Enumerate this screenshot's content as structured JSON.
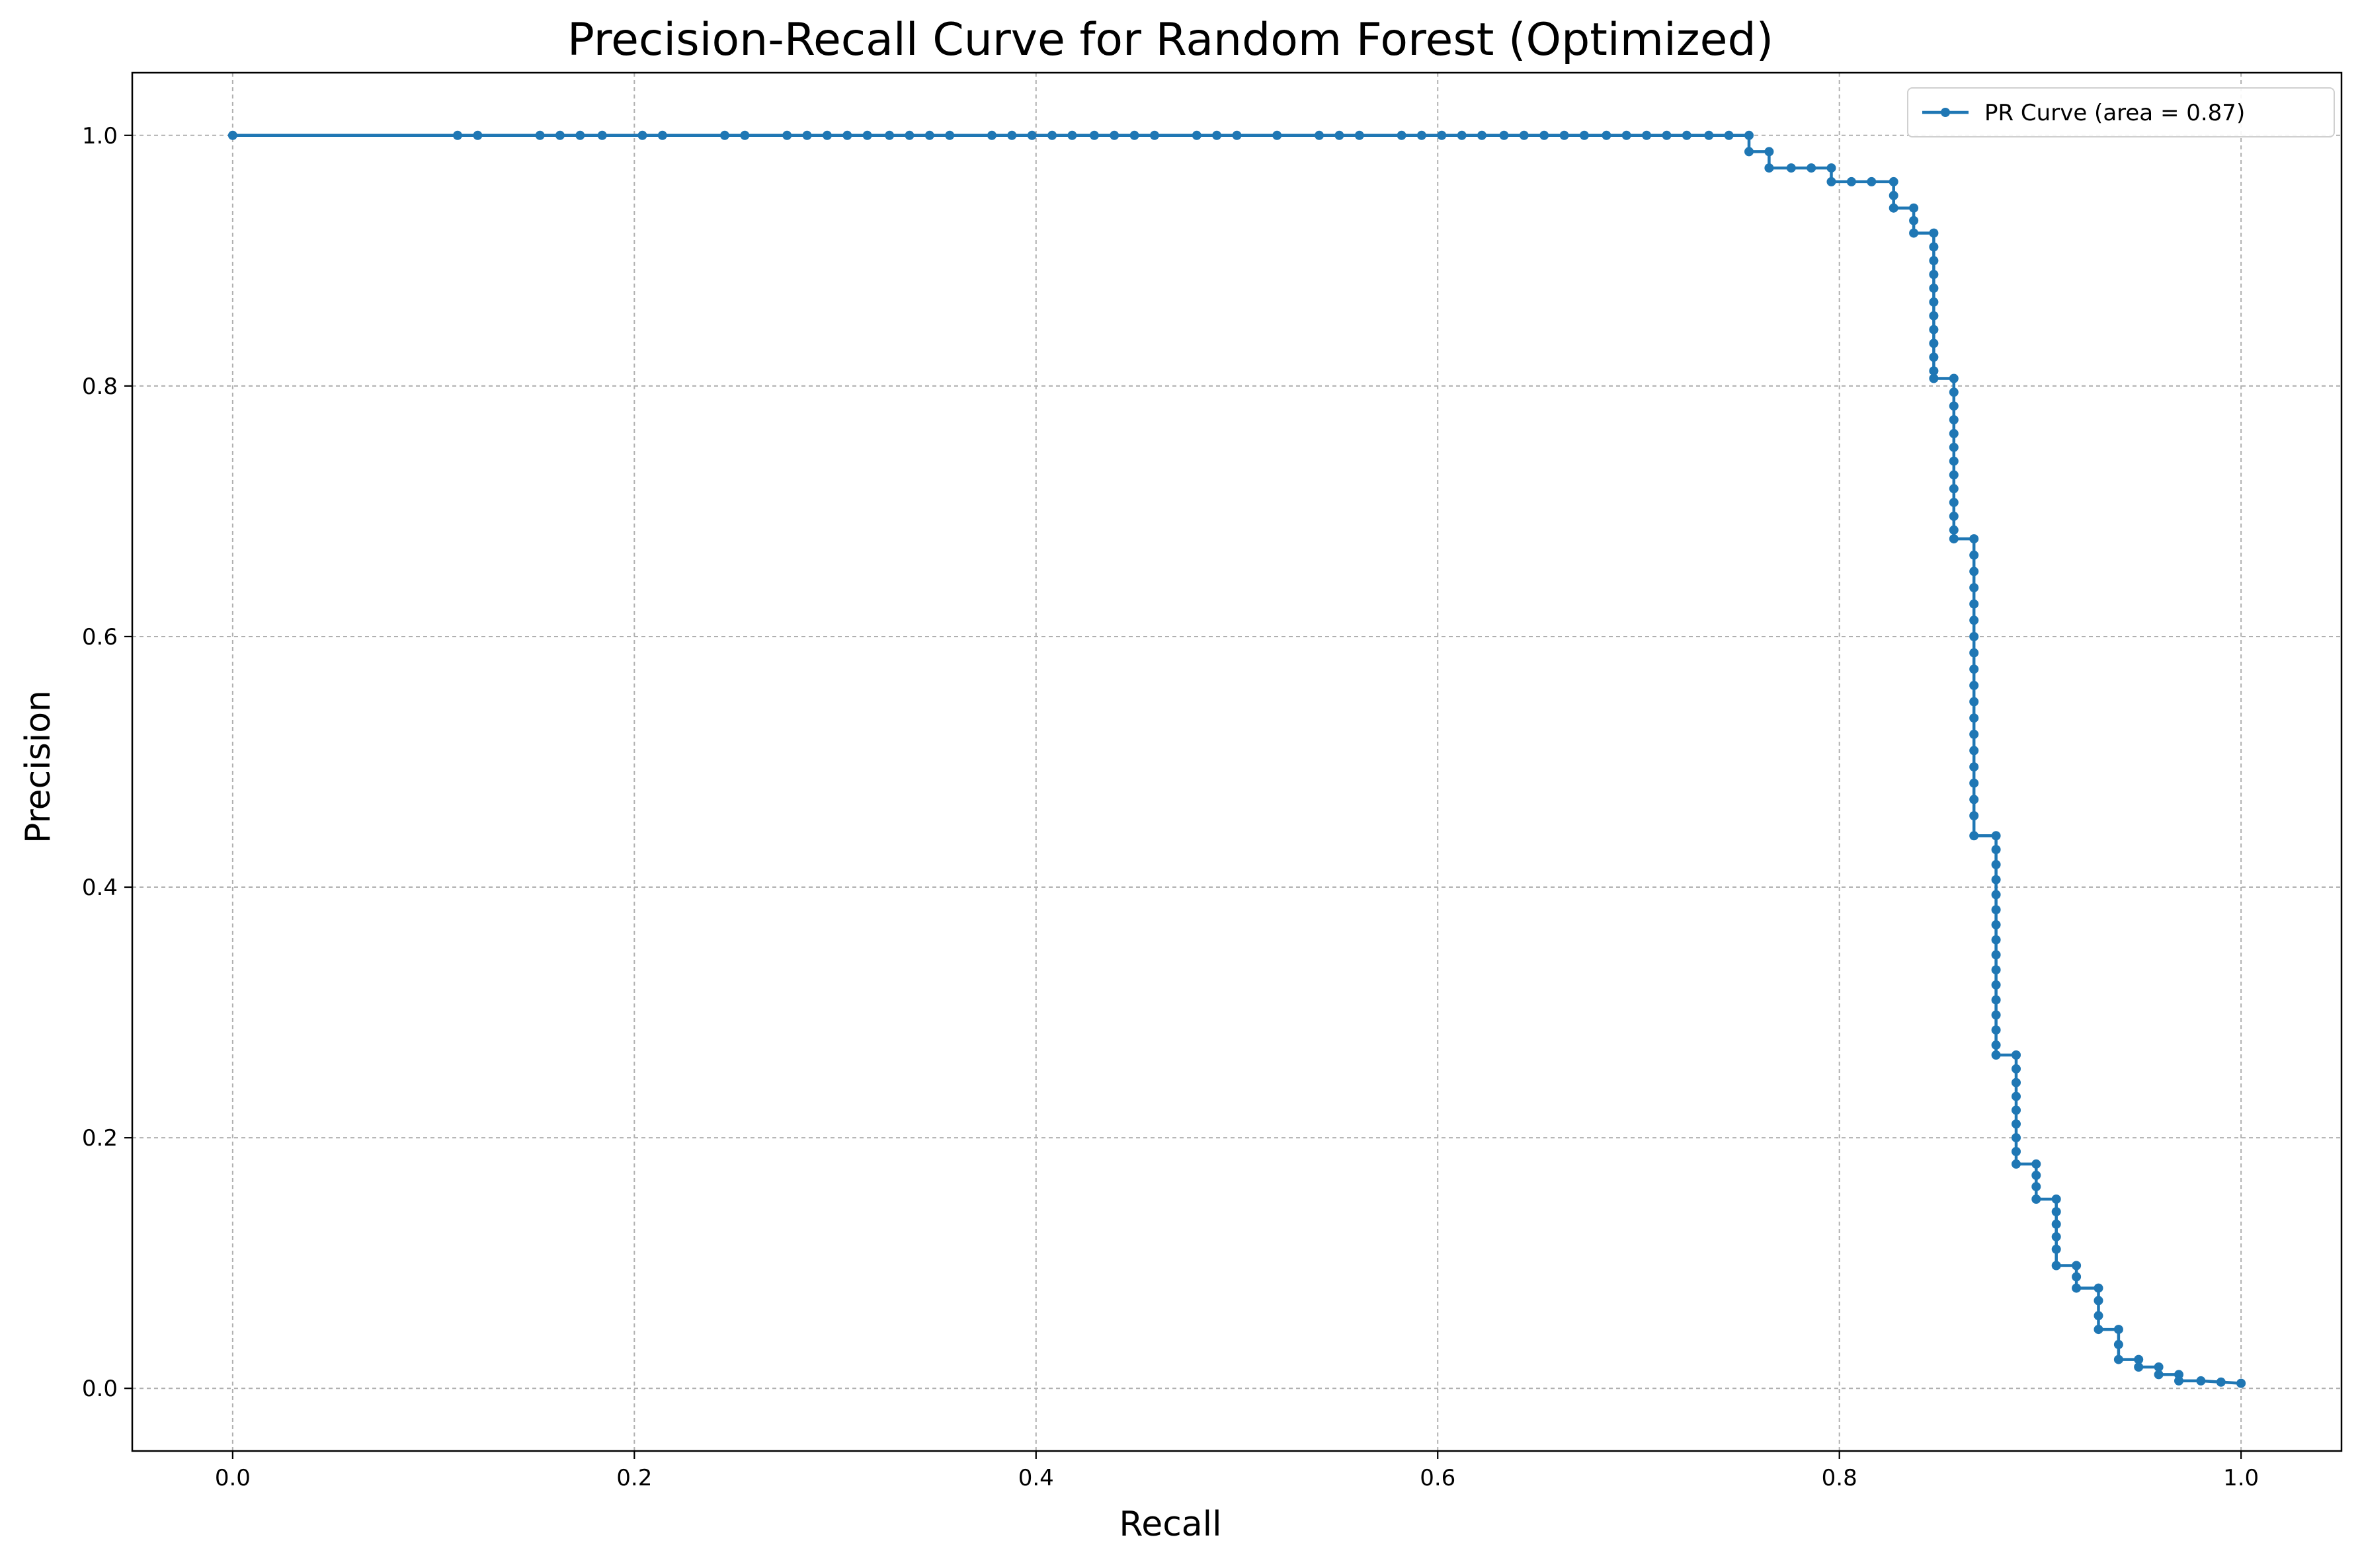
{
  "chart_data": {
    "type": "line",
    "title": "Precision-Recall Curve for Random Forest (Optimized)",
    "xlabel": "Recall",
    "ylabel": "Precision",
    "xlim": [
      -0.05,
      1.05
    ],
    "ylim": [
      -0.05,
      1.05
    ],
    "x_ticks": [
      0.0,
      0.2,
      0.4,
      0.6,
      0.8,
      1.0
    ],
    "x_tick_labels": [
      "0.0",
      "0.2",
      "0.4",
      "0.6",
      "0.8",
      "1.0"
    ],
    "y_ticks": [
      0.0,
      0.2,
      0.4,
      0.6,
      0.8,
      1.0
    ],
    "y_tick_labels": [
      "0.0",
      "0.2",
      "0.4",
      "0.6",
      "0.8",
      "1.0"
    ],
    "grid": true,
    "legend_position": "top-right",
    "series_color": "#1f77b4",
    "series": [
      {
        "name": "PR Curve (area = 0.87)",
        "points": [
          [
            0.0,
            1.0
          ],
          [
            0.112,
            1.0
          ],
          [
            0.122,
            1.0
          ],
          [
            0.153,
            1.0
          ],
          [
            0.163,
            1.0
          ],
          [
            0.173,
            1.0
          ],
          [
            0.184,
            1.0
          ],
          [
            0.204,
            1.0
          ],
          [
            0.214,
            1.0
          ],
          [
            0.245,
            1.0
          ],
          [
            0.255,
            1.0
          ],
          [
            0.276,
            1.0
          ],
          [
            0.286,
            1.0
          ],
          [
            0.296,
            1.0
          ],
          [
            0.306,
            1.0
          ],
          [
            0.316,
            1.0
          ],
          [
            0.327,
            1.0
          ],
          [
            0.337,
            1.0
          ],
          [
            0.347,
            1.0
          ],
          [
            0.357,
            1.0
          ],
          [
            0.378,
            1.0
          ],
          [
            0.388,
            1.0
          ],
          [
            0.398,
            1.0
          ],
          [
            0.408,
            1.0
          ],
          [
            0.418,
            1.0
          ],
          [
            0.429,
            1.0
          ],
          [
            0.439,
            1.0
          ],
          [
            0.449,
            1.0
          ],
          [
            0.459,
            1.0
          ],
          [
            0.48,
            1.0
          ],
          [
            0.49,
            1.0
          ],
          [
            0.5,
            1.0
          ],
          [
            0.52,
            1.0
          ],
          [
            0.541,
            1.0
          ],
          [
            0.551,
            1.0
          ],
          [
            0.561,
            1.0
          ],
          [
            0.582,
            1.0
          ],
          [
            0.592,
            1.0
          ],
          [
            0.602,
            1.0
          ],
          [
            0.612,
            1.0
          ],
          [
            0.622,
            1.0
          ],
          [
            0.633,
            1.0
          ],
          [
            0.643,
            1.0
          ],
          [
            0.653,
            1.0
          ],
          [
            0.663,
            1.0
          ],
          [
            0.673,
            1.0
          ],
          [
            0.684,
            1.0
          ],
          [
            0.694,
            1.0
          ],
          [
            0.704,
            1.0
          ],
          [
            0.714,
            1.0
          ],
          [
            0.724,
            1.0
          ],
          [
            0.735,
            1.0
          ],
          [
            0.745,
            1.0
          ],
          [
            0.755,
            1.0
          ],
          [
            0.755,
            0.987
          ],
          [
            0.765,
            0.987
          ],
          [
            0.765,
            0.974
          ],
          [
            0.776,
            0.974
          ],
          [
            0.786,
            0.974
          ],
          [
            0.796,
            0.974
          ],
          [
            0.796,
            0.963
          ],
          [
            0.806,
            0.963
          ],
          [
            0.816,
            0.963
          ],
          [
            0.827,
            0.963
          ],
          [
            0.827,
            0.952
          ],
          [
            0.827,
            0.942
          ],
          [
            0.837,
            0.942
          ],
          [
            0.837,
            0.932
          ],
          [
            0.837,
            0.922
          ],
          [
            0.847,
            0.922
          ],
          [
            0.847,
            0.911
          ],
          [
            0.847,
            0.9
          ],
          [
            0.847,
            0.889
          ],
          [
            0.847,
            0.878
          ],
          [
            0.847,
            0.867
          ],
          [
            0.847,
            0.856
          ],
          [
            0.847,
            0.845
          ],
          [
            0.847,
            0.834
          ],
          [
            0.847,
            0.823
          ],
          [
            0.847,
            0.812
          ],
          [
            0.847,
            0.806
          ],
          [
            0.857,
            0.806
          ],
          [
            0.857,
            0.795
          ],
          [
            0.857,
            0.784
          ],
          [
            0.857,
            0.773
          ],
          [
            0.857,
            0.762
          ],
          [
            0.857,
            0.751
          ],
          [
            0.857,
            0.74
          ],
          [
            0.857,
            0.729
          ],
          [
            0.857,
            0.718
          ],
          [
            0.857,
            0.707
          ],
          [
            0.857,
            0.696
          ],
          [
            0.857,
            0.685
          ],
          [
            0.857,
            0.678
          ],
          [
            0.867,
            0.678
          ],
          [
            0.867,
            0.665
          ],
          [
            0.867,
            0.652
          ],
          [
            0.867,
            0.639
          ],
          [
            0.867,
            0.626
          ],
          [
            0.867,
            0.613
          ],
          [
            0.867,
            0.6
          ],
          [
            0.867,
            0.587
          ],
          [
            0.867,
            0.574
          ],
          [
            0.867,
            0.561
          ],
          [
            0.867,
            0.548
          ],
          [
            0.867,
            0.535
          ],
          [
            0.867,
            0.522
          ],
          [
            0.867,
            0.509
          ],
          [
            0.867,
            0.496
          ],
          [
            0.867,
            0.483
          ],
          [
            0.867,
            0.47
          ],
          [
            0.867,
            0.457
          ],
          [
            0.867,
            0.441
          ],
          [
            0.878,
            0.441
          ],
          [
            0.878,
            0.43
          ],
          [
            0.878,
            0.418
          ],
          [
            0.878,
            0.406
          ],
          [
            0.878,
            0.394
          ],
          [
            0.878,
            0.382
          ],
          [
            0.878,
            0.37
          ],
          [
            0.878,
            0.358
          ],
          [
            0.878,
            0.346
          ],
          [
            0.878,
            0.334
          ],
          [
            0.878,
            0.322
          ],
          [
            0.878,
            0.31
          ],
          [
            0.878,
            0.298
          ],
          [
            0.878,
            0.286
          ],
          [
            0.878,
            0.274
          ],
          [
            0.878,
            0.266
          ],
          [
            0.888,
            0.266
          ],
          [
            0.888,
            0.255
          ],
          [
            0.888,
            0.244
          ],
          [
            0.888,
            0.233
          ],
          [
            0.888,
            0.222
          ],
          [
            0.888,
            0.211
          ],
          [
            0.888,
            0.2
          ],
          [
            0.888,
            0.189
          ],
          [
            0.888,
            0.179
          ],
          [
            0.898,
            0.179
          ],
          [
            0.898,
            0.17
          ],
          [
            0.898,
            0.161
          ],
          [
            0.898,
            0.151
          ],
          [
            0.908,
            0.151
          ],
          [
            0.908,
            0.141
          ],
          [
            0.908,
            0.131
          ],
          [
            0.908,
            0.121
          ],
          [
            0.908,
            0.111
          ],
          [
            0.908,
            0.098
          ],
          [
            0.918,
            0.098
          ],
          [
            0.918,
            0.089
          ],
          [
            0.918,
            0.08
          ],
          [
            0.929,
            0.08
          ],
          [
            0.929,
            0.07
          ],
          [
            0.929,
            0.058
          ],
          [
            0.929,
            0.047
          ],
          [
            0.939,
            0.047
          ],
          [
            0.939,
            0.035
          ],
          [
            0.939,
            0.023
          ],
          [
            0.949,
            0.023
          ],
          [
            0.949,
            0.017
          ],
          [
            0.959,
            0.017
          ],
          [
            0.959,
            0.011
          ],
          [
            0.969,
            0.011
          ],
          [
            0.969,
            0.006
          ],
          [
            0.98,
            0.006
          ],
          [
            0.99,
            0.005
          ],
          [
            1.0,
            0.004
          ]
        ]
      }
    ]
  }
}
